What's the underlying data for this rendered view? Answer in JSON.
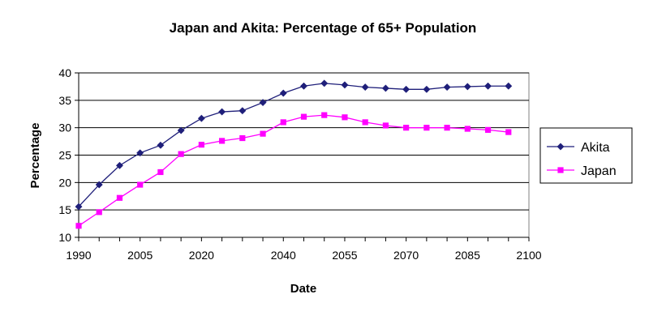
{
  "chart_data": {
    "type": "line",
    "title": "Japan and Akita:  Percentage of 65+ Population",
    "xlabel": "Date",
    "ylabel": "Percentage",
    "ylim": [
      10,
      40
    ],
    "yticks": [
      10,
      15,
      20,
      25,
      30,
      35,
      40
    ],
    "xlim": [
      1990,
      2100
    ],
    "x_tick_labels": [
      "1990",
      "2005",
      "2020",
      "2040",
      "2055",
      "2070",
      "2085",
      "2100"
    ],
    "x": [
      "1990",
      "1995",
      "2000",
      "2005",
      "2010",
      "2015",
      "2020",
      "2025",
      "2030",
      "2035",
      "2040",
      "2045",
      "2050",
      "2055",
      "2060",
      "2065",
      "2070",
      "2075",
      "2080",
      "2085",
      "2090",
      "2095"
    ],
    "grid": "horizontal",
    "legend_position": "right",
    "series": [
      {
        "name": "Akita",
        "color": "#1f1f7a",
        "marker": "diamond",
        "values": [
          15.6,
          19.6,
          23.1,
          25.4,
          26.8,
          29.5,
          31.7,
          32.9,
          33.1,
          34.6,
          36.3,
          37.6,
          38.1,
          37.8,
          37.4,
          37.2,
          37.0,
          37.0,
          37.4,
          37.5,
          37.6,
          37.6
        ]
      },
      {
        "name": "Japan",
        "color": "#ff00ff",
        "marker": "square",
        "values": [
          12.1,
          14.6,
          17.2,
          19.6,
          21.9,
          25.2,
          26.9,
          27.6,
          28.1,
          28.9,
          31.0,
          32.0,
          32.3,
          31.9,
          31.0,
          30.4,
          30.0,
          30.0,
          30.0,
          29.8,
          29.6,
          29.2
        ]
      }
    ]
  }
}
